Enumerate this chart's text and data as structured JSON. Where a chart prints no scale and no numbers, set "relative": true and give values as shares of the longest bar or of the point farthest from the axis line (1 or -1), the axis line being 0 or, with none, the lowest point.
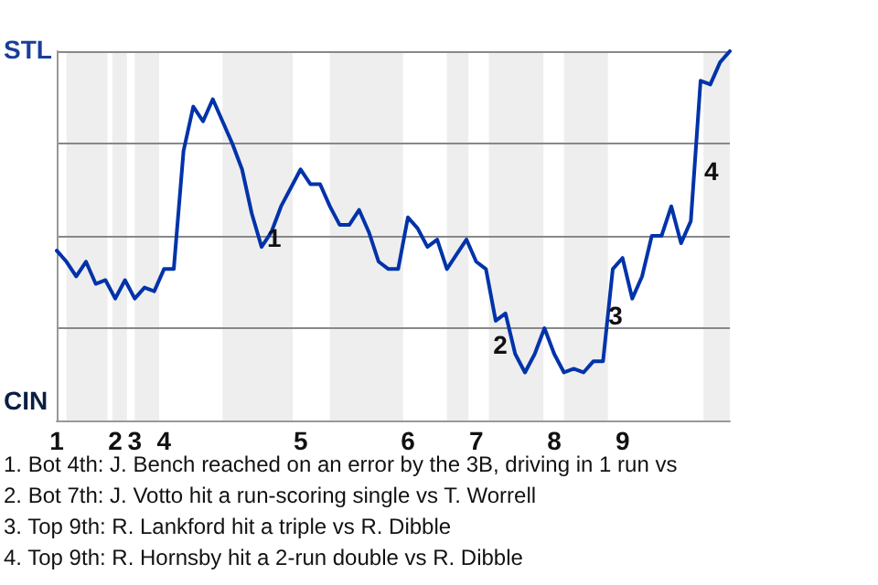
{
  "chart_data": {
    "type": "line",
    "categories": [
      "1",
      null,
      null,
      null,
      null,
      null,
      "2",
      null,
      "3",
      null,
      null,
      "4",
      null,
      null,
      null,
      null,
      null,
      null,
      null,
      null,
      null,
      null,
      null,
      null,
      null,
      "5",
      null,
      null,
      null,
      null,
      null,
      null,
      null,
      null,
      null,
      null,
      "6",
      null,
      null,
      null,
      null,
      null,
      null,
      "7",
      null,
      null,
      null,
      null,
      null,
      null,
      null,
      "8",
      null,
      null,
      null,
      null,
      null,
      null,
      "9",
      null,
      null,
      null,
      null,
      null,
      null,
      null,
      null,
      null,
      null,
      null
    ],
    "relative": true,
    "series": [
      {
        "color": "#0033aa",
        "values": [
          0.46,
          0.43,
          0.39,
          0.43,
          0.37,
          0.38,
          0.33,
          0.38,
          0.33,
          0.36,
          0.35,
          0.41,
          0.41,
          0.73,
          0.85,
          0.81,
          0.87,
          0.81,
          0.75,
          0.68,
          0.56,
          0.47,
          0.51,
          0.58,
          0.63,
          0.68,
          0.64,
          0.64,
          0.58,
          0.53,
          0.53,
          0.57,
          0.51,
          0.43,
          0.41,
          0.41,
          0.55,
          0.52,
          0.47,
          0.49,
          0.41,
          0.45,
          0.49,
          0.43,
          0.41,
          0.27,
          0.29,
          0.18,
          0.13,
          0.18,
          0.25,
          0.18,
          0.13,
          0.14,
          0.13,
          0.16,
          0.16,
          0.41,
          0.44,
          0.33,
          0.39,
          0.5,
          0.5,
          0.58,
          0.48,
          0.54,
          0.92,
          0.91,
          0.97,
          1.0
        ]
      }
    ],
    "grid": "y",
    "marker": "none",
    "annotations": [
      "STL",
      "CIN",
      "1",
      "2",
      "3",
      "4",
      "1. Bot 4th: J. Bench reached on an error by the 3B, driving in 1 run vs",
      "2. Bot 7th: J. Votto hit a run-scoring single vs T. Worrell",
      "3. Top 9th: R. Lankford hit a triple vs R. Dibble",
      "4. Top 9th: R. Hornsby hit a 2-run double vs R. Dibble"
    ]
  }
}
